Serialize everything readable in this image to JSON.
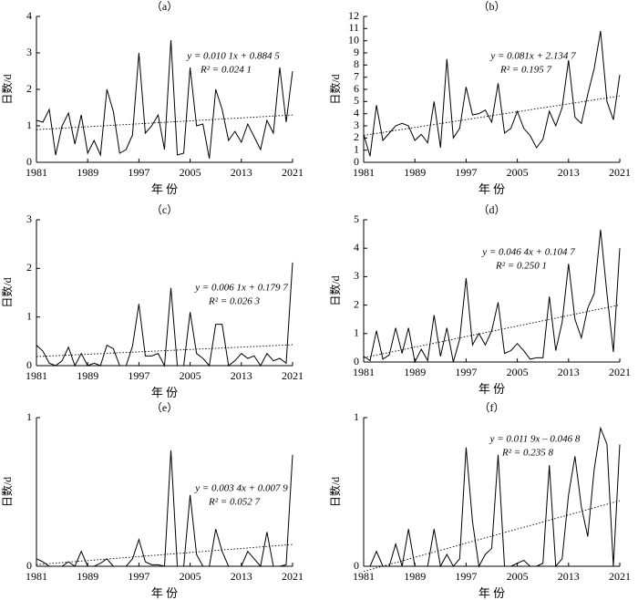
{
  "chart_data": [
    {
      "type": "line",
      "title": "（a）",
      "ylabel": "日数/d",
      "xlabel": "年 份",
      "annotations": [
        "y = 0.010 1x + 0.884 5",
        "R² = 0.024 1"
      ],
      "x": [
        1981,
        1982,
        1983,
        1984,
        1985,
        1986,
        1987,
        1988,
        1989,
        1990,
        1991,
        1992,
        1993,
        1994,
        1995,
        1996,
        1997,
        1998,
        1999,
        2000,
        2001,
        2002,
        2003,
        2004,
        2005,
        2006,
        2007,
        2008,
        2009,
        2010,
        2011,
        2012,
        2013,
        2014,
        2015,
        2016,
        2017,
        2018,
        2019,
        2020,
        2021
      ],
      "values": [
        1.15,
        1.1,
        1.45,
        0.2,
        1.0,
        1.35,
        0.5,
        1.3,
        0.25,
        0.6,
        0.2,
        2.0,
        1.4,
        0.25,
        0.35,
        0.75,
        3.0,
        0.8,
        1.0,
        1.3,
        0.35,
        3.35,
        0.2,
        0.25,
        2.6,
        1.0,
        1.05,
        0.1,
        2.0,
        1.45,
        0.6,
        0.85,
        0.55,
        1.05,
        0.7,
        0.35,
        1.15,
        0.8,
        2.6,
        1.1,
        2.5
      ],
      "color": "#000000",
      "trend_line": {
        "x": [
          1981,
          2021
        ],
        "values": [
          0.895,
          1.298
        ]
      },
      "xlim": [
        1981,
        2021
      ],
      "xticks": [
        1981,
        1989,
        1997,
        2005,
        2013,
        2021
      ],
      "ylim": [
        0,
        4
      ],
      "yticks": [
        0,
        1,
        2,
        3,
        4
      ]
    },
    {
      "type": "line",
      "title": "（b）",
      "ylabel": "日数/d",
      "xlabel": "年 份",
      "annotations": [
        "y = 0.081x + 2.134 7",
        "R² = 0.195 7"
      ],
      "x": [
        1981,
        1982,
        1983,
        1984,
        1985,
        1986,
        1987,
        1988,
        1989,
        1990,
        1991,
        1992,
        1993,
        1994,
        1995,
        1996,
        1997,
        1998,
        1999,
        2000,
        2001,
        2002,
        2003,
        2004,
        2005,
        2006,
        2007,
        2008,
        2009,
        2010,
        2011,
        2012,
        2013,
        2014,
        2015,
        2016,
        2017,
        2018,
        2019,
        2020,
        2021
      ],
      "values": [
        2.3,
        0.5,
        4.7,
        1.8,
        2.4,
        3.0,
        3.2,
        3.0,
        1.8,
        2.3,
        1.6,
        5.0,
        1.2,
        8.5,
        2.0,
        2.8,
        6.2,
        3.9,
        4.0,
        4.3,
        3.3,
        6.5,
        2.4,
        2.8,
        4.2,
        2.8,
        2.2,
        1.2,
        1.9,
        4.2,
        3.0,
        4.5,
        8.4,
        3.7,
        3.2,
        5.6,
        7.7,
        10.8,
        5.0,
        3.5,
        7.2
      ],
      "color": "#000000",
      "trend_line": {
        "x": [
          1981,
          2021
        ],
        "values": [
          2.216,
          5.456
        ]
      },
      "xlim": [
        1981,
        2021
      ],
      "xticks": [
        1981,
        1989,
        1997,
        2005,
        2013,
        2021
      ],
      "ylim": [
        0,
        12
      ],
      "yticks": [
        0,
        1,
        2,
        3,
        4,
        5,
        6,
        7,
        8,
        9,
        10,
        11,
        12
      ]
    },
    {
      "type": "line",
      "title": "（c）",
      "ylabel": "日数/d",
      "xlabel": "年 份",
      "annotations": [
        "y = 0.006 1x + 0.179 7",
        "R² = 0.026 3"
      ],
      "x": [
        1981,
        1982,
        1983,
        1984,
        1985,
        1986,
        1987,
        1988,
        1989,
        1990,
        1991,
        1992,
        1993,
        1994,
        1995,
        1996,
        1997,
        1998,
        1999,
        2000,
        2001,
        2002,
        2003,
        2004,
        2005,
        2006,
        2007,
        2008,
        2009,
        2010,
        2011,
        2012,
        2013,
        2014,
        2015,
        2016,
        2017,
        2018,
        2019,
        2020,
        2021
      ],
      "values": [
        0.42,
        0.3,
        0.05,
        0,
        0.1,
        0.38,
        0,
        0.25,
        0,
        0.05,
        0,
        0.42,
        0.35,
        0,
        0,
        0.4,
        1.27,
        0.2,
        0.2,
        0.25,
        0,
        1.6,
        0,
        0,
        1.1,
        0.25,
        0.15,
        0,
        0.85,
        0.85,
        0,
        0.1,
        0.25,
        0.15,
        0.2,
        0,
        0.25,
        0.1,
        0.15,
        0.05,
        2.12
      ],
      "color": "#000000",
      "trend_line": {
        "x": [
          1981,
          2021
        ],
        "values": [
          0.186,
          0.43
        ]
      },
      "xlim": [
        1981,
        2021
      ],
      "xticks": [
        1981,
        1989,
        1997,
        2005,
        2013,
        2021
      ],
      "ylim": [
        0,
        3
      ],
      "yticks": [
        0,
        1,
        2,
        3
      ]
    },
    {
      "type": "line",
      "title": "（d）",
      "ylabel": "日数/d",
      "xlabel": "年 份",
      "annotations": [
        "y = 0.046 4x + 0.104 7",
        "R² = 0.250 1"
      ],
      "x": [
        1981,
        1982,
        1983,
        1984,
        1985,
        1986,
        1987,
        1988,
        1989,
        1990,
        1991,
        1992,
        1993,
        1994,
        1995,
        1996,
        1997,
        1998,
        1999,
        2000,
        2001,
        2002,
        2003,
        2004,
        2005,
        2006,
        2007,
        2008,
        2009,
        2010,
        2011,
        2012,
        2013,
        2014,
        2015,
        2016,
        2017,
        2018,
        2019,
        2020,
        2021
      ],
      "values": [
        0.2,
        0.05,
        1.1,
        0.1,
        0.25,
        1.2,
        0.3,
        1.2,
        0,
        0.45,
        0.05,
        1.65,
        0.2,
        1.2,
        0,
        0.8,
        2.95,
        0.6,
        1.0,
        0.6,
        1.1,
        2.1,
        0.3,
        0.4,
        0.65,
        0.4,
        0.1,
        0.15,
        0.15,
        2.3,
        0.4,
        1.4,
        3.45,
        1.5,
        0.85,
        1.9,
        2.4,
        4.65,
        2.4,
        0.35,
        4.0
      ],
      "color": "#000000",
      "trend_line": {
        "x": [
          1981,
          2021
        ],
        "values": [
          0.151,
          2.007
        ]
      },
      "xlim": [
        1981,
        2021
      ],
      "xticks": [
        1981,
        1989,
        1997,
        2005,
        2013,
        2021
      ],
      "ylim": [
        0,
        5
      ],
      "yticks": [
        0,
        1,
        2,
        3,
        4,
        5
      ]
    },
    {
      "type": "line",
      "title": "（e）",
      "ylabel": "日数/d",
      "xlabel": "年 份",
      "annotations": [
        "y = 0.003 4x + 0.007 9",
        "R² = 0.052 7"
      ],
      "x": [
        1981,
        1982,
        1983,
        1984,
        1985,
        1986,
        1987,
        1988,
        1989,
        1990,
        1991,
        1992,
        1993,
        1994,
        1995,
        1996,
        1997,
        1998,
        1999,
        2000,
        2001,
        2002,
        2003,
        2004,
        2005,
        2006,
        2007,
        2008,
        2009,
        2010,
        2011,
        2012,
        2013,
        2014,
        2015,
        2016,
        2017,
        2018,
        2019,
        2020,
        2021
      ],
      "values": [
        0.05,
        0.03,
        0,
        0,
        0,
        0.03,
        0,
        0.1,
        0,
        0,
        0.02,
        0.05,
        0,
        0,
        0,
        0.05,
        0.18,
        0.03,
        0.01,
        0.01,
        0,
        0.78,
        0,
        0,
        0.48,
        0.08,
        0,
        0,
        0.25,
        0.1,
        0,
        0,
        0,
        0.1,
        0.05,
        0,
        0.23,
        0,
        0,
        0.01,
        0.75
      ],
      "color": "#000000",
      "trend_line": {
        "x": [
          1981,
          2021
        ],
        "values": [
          0.011,
          0.147
        ]
      },
      "xlim": [
        1981,
        2021
      ],
      "xticks": [
        1981,
        1989,
        1997,
        2005,
        2013,
        2021
      ],
      "ylim": [
        0,
        1
      ],
      "yticks": [
        0,
        1
      ]
    },
    {
      "type": "line",
      "title": "（f）",
      "ylabel": "日数/d",
      "xlabel": "年 份",
      "annotations": [
        "y = 0.011 9x – 0.046 8",
        "R² = 0.235 8"
      ],
      "x": [
        1981,
        1982,
        1983,
        1984,
        1985,
        1986,
        1987,
        1988,
        1989,
        1990,
        1991,
        1992,
        1993,
        1994,
        1995,
        1996,
        1997,
        1998,
        1999,
        2000,
        2001,
        2002,
        2003,
        2004,
        2005,
        2006,
        2007,
        2008,
        2009,
        2010,
        2011,
        2012,
        2013,
        2014,
        2015,
        2016,
        2017,
        2018,
        2019,
        2020,
        2021
      ],
      "values": [
        0,
        0,
        0.1,
        0,
        0,
        0.15,
        0,
        0.25,
        0,
        0,
        0,
        0.25,
        0,
        0.08,
        0,
        0.05,
        0.8,
        0.3,
        0,
        0.08,
        0.12,
        0.75,
        0,
        0,
        0.02,
        0.04,
        0,
        0,
        0.02,
        0.68,
        0,
        0.05,
        0.48,
        0.74,
        0.4,
        0.2,
        0.65,
        0.93,
        0.82,
        0,
        0.82
      ],
      "color": "#000000",
      "trend_line": {
        "x": [
          1981,
          2021
        ],
        "values": [
          -0.035,
          0.441
        ]
      },
      "xlim": [
        1981,
        2021
      ],
      "xticks": [
        1981,
        1989,
        1997,
        2005,
        2013,
        2021
      ],
      "ylim": [
        0,
        1
      ],
      "yticks": [
        0,
        1
      ]
    }
  ]
}
